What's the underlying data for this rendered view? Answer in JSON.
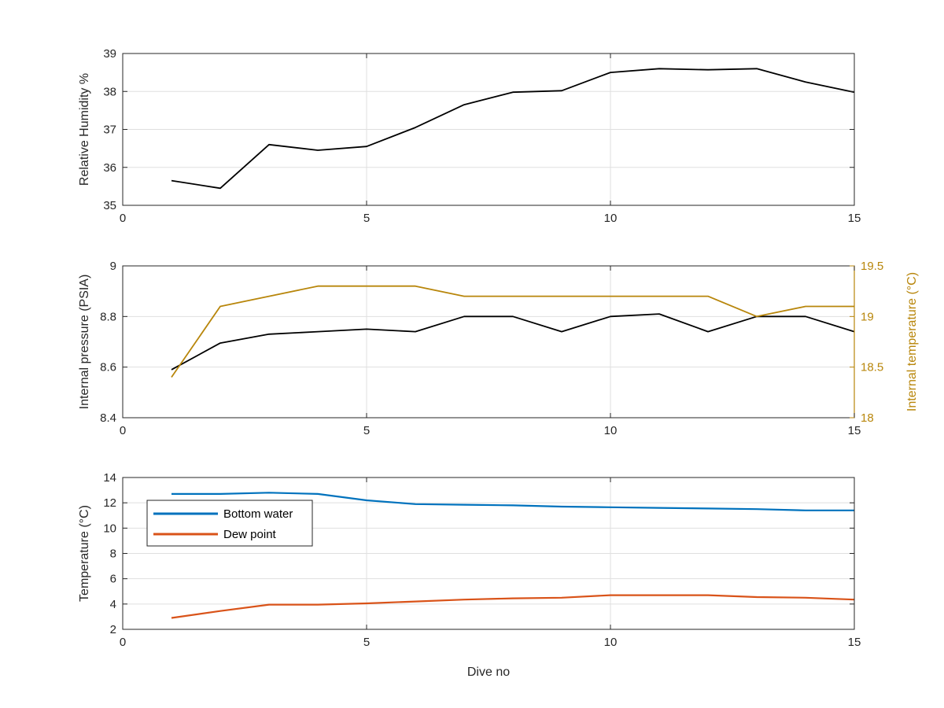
{
  "colors": {
    "axis": "#262626",
    "grid": "#dfdfdf",
    "black_series": "#000000",
    "internal_temperature": "#b8860b",
    "bottom_water": "#0072bd",
    "dew_point": "#d95319"
  },
  "chart_data": [
    {
      "type": "line",
      "title": "",
      "xlabel": "",
      "ylabel": "Relative Humidity %",
      "xlim": [
        0,
        15
      ],
      "ylim": [
        35,
        39
      ],
      "xticks": [
        0,
        5,
        10,
        15
      ],
      "yticks": [
        35,
        36,
        37,
        38,
        39
      ],
      "grid": true,
      "series": [
        {
          "color": "#000000",
          "x": [
            1,
            2,
            3,
            4,
            5,
            6,
            7,
            8,
            9,
            10,
            11,
            12,
            13,
            14,
            15
          ],
          "values": [
            35.65,
            35.45,
            36.6,
            36.45,
            36.55,
            37.05,
            37.65,
            37.98,
            38.02,
            38.5,
            38.6,
            38.57,
            38.6,
            38.25,
            37.98
          ]
        }
      ]
    },
    {
      "type": "line",
      "title": "",
      "xlabel": "",
      "ylabel": "Internal pressure (PSIA)",
      "ylabel_right": "Internal temperature (°C)",
      "xlim": [
        0,
        15
      ],
      "ylim": [
        8.4,
        9.0
      ],
      "ylim_right": [
        18,
        19.5
      ],
      "xticks": [
        0,
        5,
        10,
        15
      ],
      "yticks": [
        8.4,
        8.6,
        8.8,
        9.0
      ],
      "yticks_right": [
        18,
        18.5,
        19,
        19.5
      ],
      "yticklabels": [
        "8.4",
        "8.6",
        "8.8",
        "9"
      ],
      "yticklabels_right": [
        "18",
        "18.5",
        "19",
        "19.5"
      ],
      "grid": true,
      "series": [
        {
          "axis": "left",
          "color": "#000000",
          "x": [
            1,
            2,
            3,
            4,
            5,
            6,
            7,
            8,
            9,
            10,
            11,
            12,
            13,
            14,
            15
          ],
          "values": [
            8.59,
            8.695,
            8.73,
            8.74,
            8.75,
            8.74,
            8.8,
            8.8,
            8.74,
            8.8,
            8.81,
            8.74,
            8.8,
            8.8,
            8.74
          ]
        },
        {
          "axis": "right",
          "color": "#b8860b",
          "x": [
            1,
            2,
            3,
            4,
            5,
            6,
            7,
            8,
            9,
            10,
            11,
            12,
            13,
            14,
            15
          ],
          "values": [
            18.4,
            19.1,
            19.2,
            19.3,
            19.3,
            19.3,
            19.2,
            19.2,
            19.2,
            19.2,
            19.2,
            19.2,
            19.0,
            19.1,
            19.1
          ]
        }
      ]
    },
    {
      "type": "line",
      "title": "",
      "xlabel": "Dive no",
      "ylabel": "Temperature (°C)",
      "xlim": [
        0,
        15
      ],
      "ylim": [
        2,
        14
      ],
      "xticks": [
        0,
        5,
        10,
        15
      ],
      "yticks": [
        2,
        4,
        6,
        8,
        10,
        12,
        14
      ],
      "grid": true,
      "legend": "top-left",
      "series": [
        {
          "name": "Bottom water",
          "color": "#0072bd",
          "x": [
            1,
            2,
            3,
            4,
            5,
            6,
            7,
            8,
            9,
            10,
            11,
            12,
            13,
            14,
            15
          ],
          "values": [
            12.7,
            12.7,
            12.8,
            12.7,
            12.2,
            11.9,
            11.85,
            11.8,
            11.7,
            11.65,
            11.6,
            11.55,
            11.5,
            11.4,
            11.4
          ]
        },
        {
          "name": "Dew point",
          "color": "#d95319",
          "x": [
            1,
            2,
            3,
            4,
            5,
            6,
            7,
            8,
            9,
            10,
            11,
            12,
            13,
            14,
            15
          ],
          "values": [
            2.9,
            3.45,
            3.95,
            3.95,
            4.05,
            4.2,
            4.35,
            4.45,
            4.5,
            4.7,
            4.7,
            4.7,
            4.55,
            4.5,
            4.35
          ]
        }
      ]
    }
  ]
}
